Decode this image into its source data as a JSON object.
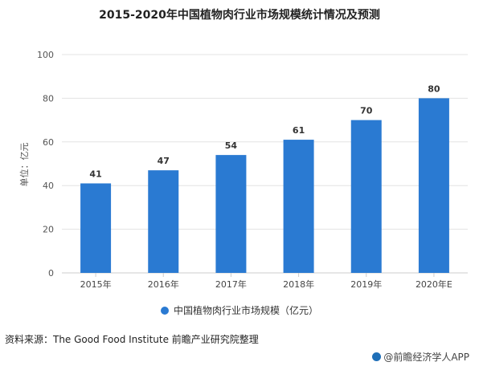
{
  "chart_data": {
    "type": "bar",
    "title": "2015-2020年中国植物肉行业市场规模统计情况及预测",
    "ylabel": "单位：亿元",
    "xlabel": "",
    "categories": [
      "2015年",
      "2016年",
      "2017年",
      "2018年",
      "2019年",
      "2020年E"
    ],
    "series": [
      {
        "name": "中国植物肉行业市场规模（亿元）",
        "values": [
          41,
          47,
          54,
          61,
          70,
          80
        ]
      }
    ],
    "ylim": [
      0,
      100
    ],
    "yticks": [
      0,
      20,
      40,
      60,
      80,
      100
    ],
    "grid": true,
    "legend_position": "bottom",
    "bar_color": "#2a7ad2"
  },
  "footer": {
    "source": "资料来源：The Good Food Institute 前瞻产业研究院整理",
    "app": "@前瞻经济学人APP"
  },
  "colors": {
    "bar": "#2a7ad2",
    "grid": "#e3e3e3",
    "axis": "#cccccc"
  }
}
